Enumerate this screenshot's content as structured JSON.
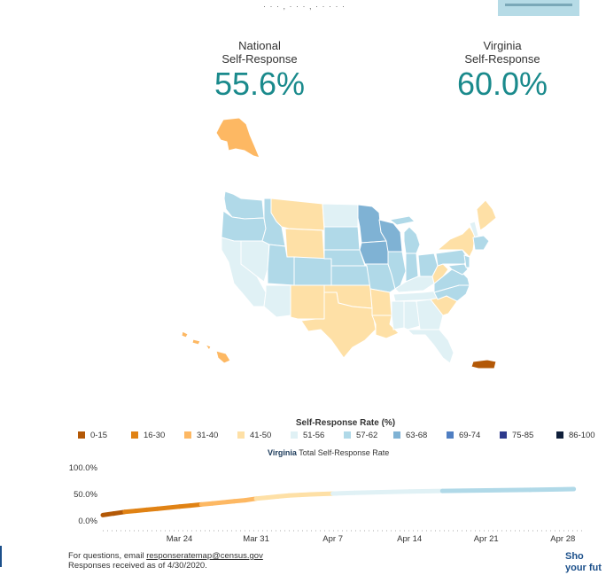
{
  "top": {
    "text": "· · · , · · · , · · · · ·"
  },
  "national": {
    "label_line1": "National",
    "label_line2": "Self-Response",
    "value": "55.6%"
  },
  "virginia": {
    "label_line1": "Virginia",
    "label_line2": "Self-Response",
    "value": "60.0%"
  },
  "map": {
    "colors": {
      "0-15": "#b35806",
      "16-30": "#e08214",
      "31-40": "#fdb863",
      "41-50": "#fee0a6",
      "51-56": "#e0f1f5",
      "57-62": "#b0d9e8",
      "63-68": "#7fb2d4",
      "69-74": "#4f7ec2",
      "75-85": "#2d3a8c",
      "86-100": "#0f1f3a"
    }
  },
  "legend": {
    "title": "Self-Response Rate (%)",
    "items": [
      {
        "label": "0-15",
        "color": "#b35806"
      },
      {
        "label": "16-30",
        "color": "#e08214"
      },
      {
        "label": "31-40",
        "color": "#fdb863"
      },
      {
        "label": "41-50",
        "color": "#fee0a6"
      },
      {
        "label": "51-56",
        "color": "#e0f1f5"
      },
      {
        "label": "57-62",
        "color": "#b0d9e8"
      },
      {
        "label": "63-68",
        "color": "#7fb2d4"
      },
      {
        "label": "69-74",
        "color": "#4f7ec2"
      },
      {
        "label": "75-85",
        "color": "#2d3a8c"
      },
      {
        "label": "86-100",
        "color": "#0f1f3a"
      }
    ]
  },
  "chart_title": {
    "state": "Virginia",
    "rest": "Total Self-Response Rate"
  },
  "chart_data": {
    "type": "line",
    "title": "Virginia Total Self-Response Rate",
    "y_ticks": [
      "100.0%",
      "50.0%",
      "0.0%"
    ],
    "ylim": [
      0,
      100
    ],
    "x_ticks": [
      "Mar 24",
      "Mar 31",
      "Apr 7",
      "Apr 14",
      "Apr 21",
      "Apr 28"
    ],
    "x_tick_days": [
      24,
      31,
      38,
      45,
      52,
      59
    ],
    "x_range_days": [
      17,
      61
    ],
    "series": [
      {
        "x": [
          17,
          18,
          19,
          20,
          21,
          22,
          23,
          24,
          25,
          26,
          27,
          28,
          29,
          30,
          31,
          32,
          33,
          34,
          35,
          36,
          38,
          40,
          42,
          45,
          48,
          52,
          56,
          60
        ],
        "y": [
          11,
          14,
          17,
          19,
          21,
          23,
          25,
          27,
          29,
          31,
          33,
          35,
          37,
          39,
          42,
          44,
          46,
          48,
          49,
          50,
          51.5,
          53,
          54,
          55.5,
          56.5,
          57.5,
          58.5,
          60
        ]
      }
    ]
  },
  "footer": {
    "line1_prefix": "For questions, email ",
    "email": "responseratemap@census.gov",
    "line2": "Responses received as of 4/30/2020.",
    "cta_line1": "Sho",
    "cta_line2": "your fut"
  }
}
